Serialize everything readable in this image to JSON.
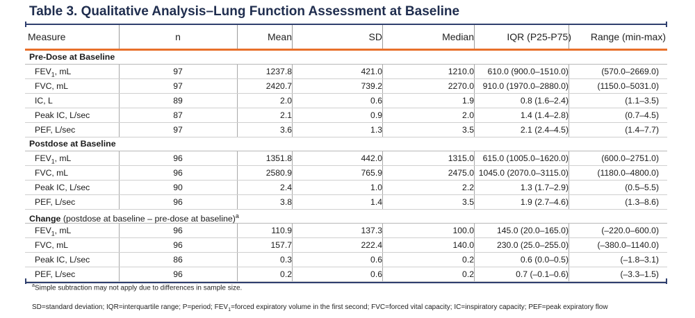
{
  "title": "Table 3. Qualitative Analysis–Lung Function Assessment at Baseline",
  "headers": [
    "Measure",
    "n",
    "Mean",
    "SD",
    "Median",
    "IQR (P25-P75)",
    "Range (min-max)"
  ],
  "sections": [
    {
      "title": "Pre-Dose at Baseline",
      "title_extra": "",
      "title_sup": "",
      "rows": [
        {
          "measure": "FEV",
          "sub": "1",
          "unit": ", mL",
          "n": "97",
          "mean": "1237.8",
          "sd": "421.0",
          "median": "1210.0",
          "iqr": "610.0 (900.0–1510.0)",
          "range": "(570.0–2669.0)"
        },
        {
          "measure": "FVC, mL",
          "sub": "",
          "unit": "",
          "n": "97",
          "mean": "2420.7",
          "sd": "739.2",
          "median": "2270.0",
          "iqr": "910.0 (1970.0–2880.0)",
          "range": "(1150.0–5031.0)"
        },
        {
          "measure": "IC, L",
          "sub": "",
          "unit": "",
          "n": "89",
          "mean": "2.0",
          "sd": "0.6",
          "median": "1.9",
          "iqr": "0.8 (1.6–2.4)",
          "range": "(1.1–3.5)"
        },
        {
          "measure": "Peak IC, L/sec",
          "sub": "",
          "unit": "",
          "n": "87",
          "mean": "2.1",
          "sd": "0.9",
          "median": "2.0",
          "iqr": "1.4 (1.4–2.8)",
          "range": "(0.7–4.5)"
        },
        {
          "measure": "PEF, L/sec",
          "sub": "",
          "unit": "",
          "n": "97",
          "mean": "3.6",
          "sd": "1.3",
          "median": "3.5",
          "iqr": "2.1 (2.4–4.5)",
          "range": "(1.4–7.7)"
        }
      ]
    },
    {
      "title": "Postdose at Baseline",
      "title_extra": "",
      "title_sup": "",
      "rows": [
        {
          "measure": "FEV",
          "sub": "1",
          "unit": ", mL",
          "n": "96",
          "mean": "1351.8",
          "sd": "442.0",
          "median": "1315.0",
          "iqr": "615.0 (1005.0–1620.0)",
          "range": "(600.0–2751.0)"
        },
        {
          "measure": "FVC, mL",
          "sub": "",
          "unit": "",
          "n": "96",
          "mean": "2580.9",
          "sd": "765.9",
          "median": "2475.0",
          "iqr": "1045.0 (2070.0–3115.0)",
          "range": "(1180.0–4800.0)"
        },
        {
          "measure": "Peak IC, L/sec",
          "sub": "",
          "unit": "",
          "n": "90",
          "mean": "2.4",
          "sd": "1.0",
          "median": "2.2",
          "iqr": "1.3 (1.7–2.9)",
          "range": "(0.5–5.5)"
        },
        {
          "measure": "PEF, L/sec",
          "sub": "",
          "unit": "",
          "n": "96",
          "mean": "3.8",
          "sd": "1.4",
          "median": "3.5",
          "iqr": "1.9 (2.7–4.6)",
          "range": "(1.3–8.6)"
        }
      ]
    },
    {
      "title": "Change",
      "title_extra": " (postdose at baseline – pre-dose at baseline)",
      "title_sup": "a",
      "rows": [
        {
          "measure": "FEV",
          "sub": "1",
          "unit": ", mL",
          "n": "96",
          "mean": "110.9",
          "sd": "137.3",
          "median": "100.0",
          "iqr": "145.0 (20.0–165.0)",
          "range": "(–220.0–600.0)"
        },
        {
          "measure": "FVC, mL",
          "sub": "",
          "unit": "",
          "n": "96",
          "mean": "157.7",
          "sd": "222.4",
          "median": "140.0",
          "iqr": "230.0 (25.0–255.0)",
          "range": "(–380.0–1140.0)"
        },
        {
          "measure": "Peak IC, L/sec",
          "sub": "",
          "unit": "",
          "n": "86",
          "mean": "0.3",
          "sd": "0.6",
          "median": "0.2",
          "iqr": "0.6 (0.0–0.5)",
          "range": "(–1.8–3.1)"
        },
        {
          "measure": "PEF, L/sec",
          "sub": "",
          "unit": "",
          "n": "96",
          "mean": "0.2",
          "sd": "0.6",
          "median": "0.2",
          "iqr": "0.7 (–0.1–0.6)",
          "range": "(–3.3–1.5)"
        }
      ]
    }
  ],
  "footnote_a": {
    "sup": "a",
    "text": "Simple subtraction may not apply due to differences in sample size."
  },
  "abbrev": {
    "before_sub": "SD=standard deviation; IQR=interquartile range; P=period; FEV",
    "sub": "1",
    "after_sub": "=forced expiratory volume in the first second; FVC=forced vital capacity; IC=inspiratory capacity; PEF=peak expiratory flow"
  },
  "colors": {
    "title": "#1f2d4e",
    "rule": "#2f3f6e",
    "accent": "#e8702a"
  }
}
